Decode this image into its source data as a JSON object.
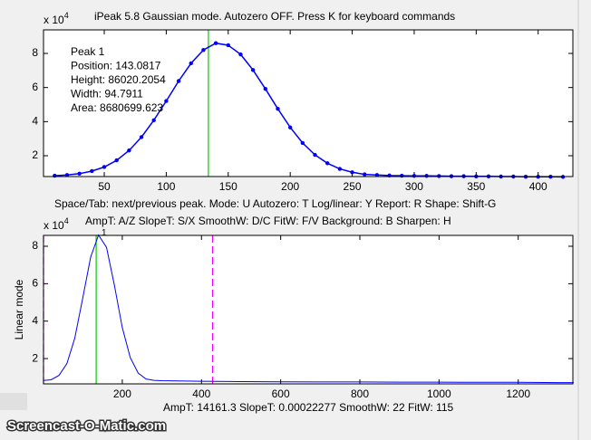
{
  "title": "iPeak 5.8  Gaussian mode.      Autozero OFF.    Press K for keyboard commands",
  "help_lines": [
    "Space/Tab: next/previous peak.  Mode: U  Autozero: T   Log/linear: Y   Report: R   Shape: Shift-G",
    "AmpT: A/Z   SlopeT: S/X   SmoothW: D/C    FitW: F/V   Background: B   Sharpen: H"
  ],
  "status": "AmpT: 14161.3     SlopeT: 0.00022277     SmoothW: 22     FitW: 115",
  "watermark": "Screencast-O-Matic.com",
  "chart_data": [
    {
      "type": "line",
      "markers_on": true,
      "color": "#0000ff",
      "x": [
        10,
        20,
        30,
        40,
        50,
        60,
        70,
        80,
        90,
        100,
        110,
        120,
        130,
        140,
        150,
        160,
        170,
        180,
        190,
        200,
        210,
        220,
        230,
        240,
        250,
        260,
        270,
        280,
        290,
        300,
        310,
        320,
        330,
        340,
        350,
        360,
        370,
        380,
        390,
        400,
        410,
        420
      ],
      "values": [
        0.83,
        0.87,
        0.95,
        1.1,
        1.34,
        1.73,
        2.31,
        3.09,
        4.08,
        5.21,
        6.38,
        7.42,
        8.2,
        8.6,
        8.48,
        7.94,
        7.03,
        5.92,
        4.75,
        3.66,
        2.75,
        2.05,
        1.56,
        1.23,
        1.03,
        0.91,
        0.87,
        0.84,
        0.83,
        0.82,
        0.82,
        0.81,
        0.8,
        0.8,
        0.79,
        0.79,
        0.78,
        0.78,
        0.77,
        0.77,
        0.77,
        0.76
      ],
      "xlim": [
        1,
        428
      ],
      "ylim": [
        0.78,
        9.38
      ],
      "xticks": [
        50,
        100,
        150,
        200,
        250,
        300,
        350,
        400
      ],
      "yticks": [
        2,
        4,
        6,
        8
      ],
      "y_multiplier": {
        "base": "x 10",
        "exponent": "4"
      },
      "vlines": [
        {
          "x": 134,
          "color": "#00cc00",
          "dash": false
        }
      ],
      "annotations": [
        "Peak 1",
        "Position: 143.0817",
        "Height: 86020.2054",
        "Width: 94.7911",
        "Area: 8680699.623"
      ]
    },
    {
      "type": "line",
      "markers_on": false,
      "color": "#0000ff",
      "x": [
        1,
        20,
        40,
        60,
        80,
        100,
        120,
        140,
        160,
        180,
        200,
        220,
        240,
        260,
        280,
        300,
        400,
        500,
        600,
        700,
        800,
        900,
        1000,
        1100,
        1200,
        1300,
        1340
      ],
      "values": [
        0.83,
        0.87,
        1.1,
        1.73,
        3.09,
        5.21,
        7.42,
        8.6,
        7.94,
        5.92,
        3.66,
        2.05,
        1.23,
        0.91,
        0.84,
        0.82,
        0.79,
        0.77,
        0.76,
        0.75,
        0.75,
        0.74,
        0.74,
        0.73,
        0.73,
        0.72,
        0.72
      ],
      "xlim": [
        1,
        1338
      ],
      "ylim": [
        0.65,
        8.58
      ],
      "xticks": [
        200,
        400,
        600,
        800,
        1000,
        1200
      ],
      "yticks": [
        2,
        4,
        6,
        8
      ],
      "ylabel": "Linear mode",
      "y_multiplier": {
        "base": "x 10",
        "exponent": "4"
      },
      "vlines": [
        {
          "x": 134,
          "color": "#00cc00",
          "dash": false
        },
        {
          "x": 1,
          "color": "#ff00ff",
          "dash": true
        },
        {
          "x": 428,
          "color": "#ff00ff",
          "dash": true
        }
      ],
      "peak_label": {
        "x": 143.08,
        "y": 8.6,
        "text": "1"
      }
    }
  ]
}
